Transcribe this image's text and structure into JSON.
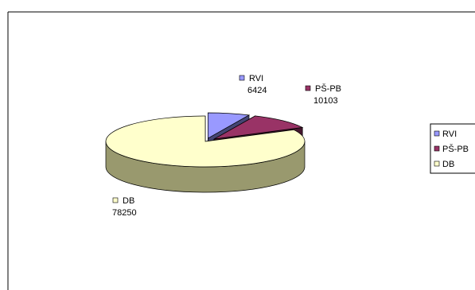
{
  "chart_data": {
    "type": "pie",
    "style": "3d-exploded",
    "categories": [
      "RVI",
      "PŠ-PB",
      "DB"
    ],
    "values": [
      6424,
      10103,
      78250
    ],
    "colors": {
      "RVI": "#9999ff",
      "PŠ-PB": "#993366",
      "DB": "#ffffcc"
    },
    "data_labels": [
      {
        "name": "RVI",
        "value": "6424"
      },
      {
        "name": "PŠ-PB",
        "value": "10103"
      },
      {
        "name": "DB",
        "value": "78250"
      }
    ],
    "legend": {
      "position": "right",
      "items": [
        "RVI",
        "PŠ-PB",
        "DB"
      ]
    },
    "title": "",
    "grid": false
  }
}
